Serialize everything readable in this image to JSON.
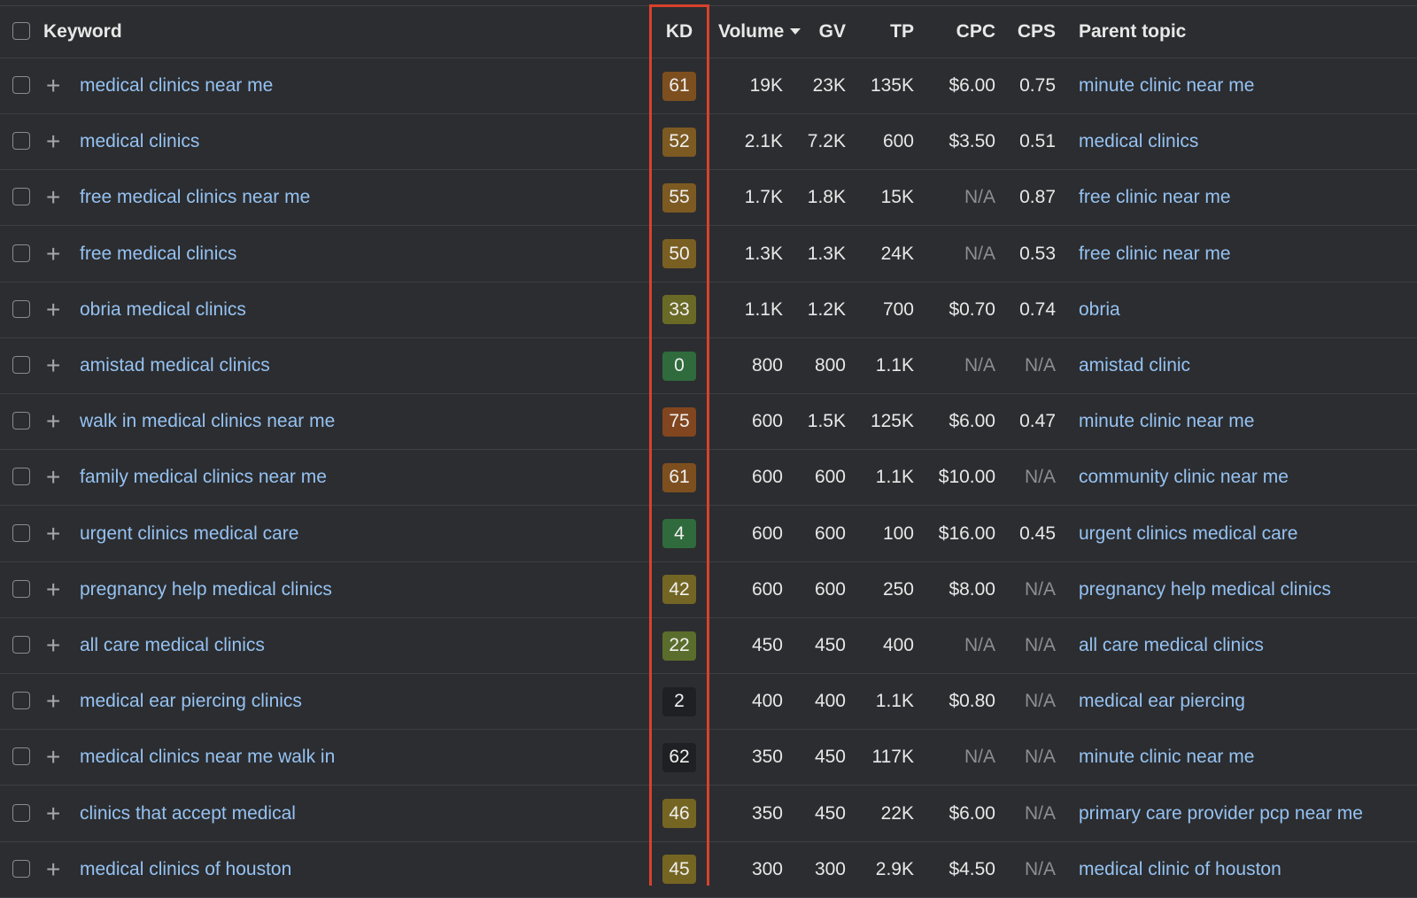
{
  "header": {
    "keyword": "Keyword",
    "kd": "KD",
    "volume": "Volume",
    "gv": "GV",
    "tp": "TP",
    "cpc": "CPC",
    "cps": "CPS",
    "parent_topic": "Parent topic",
    "sort_icon": "caret-down-icon"
  },
  "colors": {
    "highlight_box": "#d9412b",
    "link": "#95c2f2",
    "background": "#2c2d30"
  },
  "rows": [
    {
      "keyword": "medical clinics near me",
      "kd": "61",
      "kd_color": "#7d4f1f",
      "volume": "19K",
      "gv": "23K",
      "tp": "135K",
      "cpc": "$6.00",
      "cps": "0.75",
      "parent": "minute clinic near me"
    },
    {
      "keyword": "medical clinics",
      "kd": "52",
      "kd_color": "#7c5a22",
      "volume": "2.1K",
      "gv": "7.2K",
      "tp": "600",
      "cpc": "$3.50",
      "cps": "0.51",
      "parent": "medical clinics"
    },
    {
      "keyword": "free medical clinics near me",
      "kd": "55",
      "kd_color": "#7c5a22",
      "volume": "1.7K",
      "gv": "1.8K",
      "tp": "15K",
      "cpc": "N/A",
      "cps": "0.87",
      "parent": "free clinic near me"
    },
    {
      "keyword": "free medical clinics",
      "kd": "50",
      "kd_color": "#7a5f22",
      "volume": "1.3K",
      "gv": "1.3K",
      "tp": "24K",
      "cpc": "N/A",
      "cps": "0.53",
      "parent": "free clinic near me"
    },
    {
      "keyword": "obria medical clinics",
      "kd": "33",
      "kd_color": "#6a6a27",
      "volume": "1.1K",
      "gv": "1.2K",
      "tp": "700",
      "cpc": "$0.70",
      "cps": "0.74",
      "parent": "obria"
    },
    {
      "keyword": "amistad medical clinics",
      "kd": "0",
      "kd_color": "#2f6b3c",
      "volume": "800",
      "gv": "800",
      "tp": "1.1K",
      "cpc": "N/A",
      "cps": "N/A",
      "parent": "amistad clinic"
    },
    {
      "keyword": "walk in medical clinics near me",
      "kd": "75",
      "kd_color": "#81461f",
      "volume": "600",
      "gv": "1.5K",
      "tp": "125K",
      "cpc": "$6.00",
      "cps": "0.47",
      "parent": "minute clinic near me"
    },
    {
      "keyword": "family medical clinics near me",
      "kd": "61",
      "kd_color": "#7d4f1f",
      "volume": "600",
      "gv": "600",
      "tp": "1.1K",
      "cpc": "$10.00",
      "cps": "N/A",
      "parent": "community clinic near me"
    },
    {
      "keyword": "urgent clinics medical care",
      "kd": "4",
      "kd_color": "#2f6b3c",
      "volume": "600",
      "gv": "600",
      "tp": "100",
      "cpc": "$16.00",
      "cps": "0.45",
      "parent": "urgent clinics medical care"
    },
    {
      "keyword": "pregnancy help medical clinics",
      "kd": "42",
      "kd_color": "#736624",
      "volume": "600",
      "gv": "600",
      "tp": "250",
      "cpc": "$8.00",
      "cps": "N/A",
      "parent": "pregnancy help medical clinics"
    },
    {
      "keyword": "all care medical clinics",
      "kd": "22",
      "kd_color": "#5a6d2c",
      "volume": "450",
      "gv": "450",
      "tp": "400",
      "cpc": "N/A",
      "cps": "N/A",
      "parent": "all care medical clinics"
    },
    {
      "keyword": "medical ear piercing clinics",
      "kd": "2",
      "kd_color": "#1f2023",
      "volume": "400",
      "gv": "400",
      "tp": "1.1K",
      "cpc": "$0.80",
      "cps": "N/A",
      "parent": "medical ear piercing"
    },
    {
      "keyword": "medical clinics near me walk in",
      "kd": "62",
      "kd_color": "#1f2023",
      "volume": "350",
      "gv": "450",
      "tp": "117K",
      "cpc": "N/A",
      "cps": "N/A",
      "parent": "minute clinic near me"
    },
    {
      "keyword": "clinics that accept medical",
      "kd": "46",
      "kd_color": "#756522",
      "volume": "350",
      "gv": "450",
      "tp": "22K",
      "cpc": "$6.00",
      "cps": "N/A",
      "parent": "primary care provider pcp near me"
    },
    {
      "keyword": "medical clinics of houston",
      "kd": "45",
      "kd_color": "#756522",
      "volume": "300",
      "gv": "300",
      "tp": "2.9K",
      "cpc": "$4.50",
      "cps": "N/A",
      "parent": "medical clinic of houston"
    }
  ]
}
